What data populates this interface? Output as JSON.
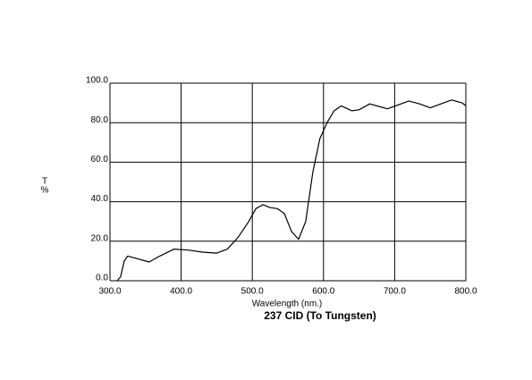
{
  "chart_data": {
    "type": "line",
    "title": "237 CID (To Tungsten)",
    "xlabel": "Wavelength (nm.)",
    "ylabel": [
      "T",
      "%"
    ],
    "x": [
      310,
      315,
      320,
      325,
      340,
      355,
      370,
      390,
      410,
      430,
      450,
      465,
      480,
      495,
      505,
      515,
      525,
      535,
      545,
      555,
      565,
      575,
      585,
      595,
      605,
      615,
      625,
      640,
      650,
      665,
      680,
      690,
      705,
      720,
      735,
      750,
      765,
      780,
      795,
      800
    ],
    "values": [
      0,
      2,
      10,
      12.5,
      11,
      9.5,
      12.5,
      16,
      15.5,
      14.5,
      14,
      16,
      22,
      30,
      36.5,
      38.5,
      37,
      36.5,
      34,
      25,
      21,
      30,
      55,
      72,
      80,
      86,
      88.5,
      86,
      86.5,
      89.5,
      88,
      87,
      89,
      91,
      89.5,
      87.5,
      89.5,
      91.5,
      90,
      88.5
    ],
    "color": "#000000",
    "xlim": [
      300,
      800
    ],
    "ylim": [
      0,
      100
    ],
    "xticks": [
      {
        "value": 300,
        "label": "300.0"
      },
      {
        "value": 400,
        "label": "400.0"
      },
      {
        "value": 500,
        "label": "500.0"
      },
      {
        "value": 600,
        "label": "600.0"
      },
      {
        "value": 700,
        "label": "700.0"
      },
      {
        "value": 800,
        "label": "800.0"
      }
    ],
    "yticks": [
      {
        "value": 0,
        "label": "0.0"
      },
      {
        "value": 20,
        "label": "20.0"
      },
      {
        "value": 40,
        "label": "40.0"
      },
      {
        "value": 60,
        "label": "60.0"
      },
      {
        "value": 80,
        "label": "80.0"
      },
      {
        "value": 100,
        "label": "100.0"
      }
    ],
    "grid": true
  }
}
